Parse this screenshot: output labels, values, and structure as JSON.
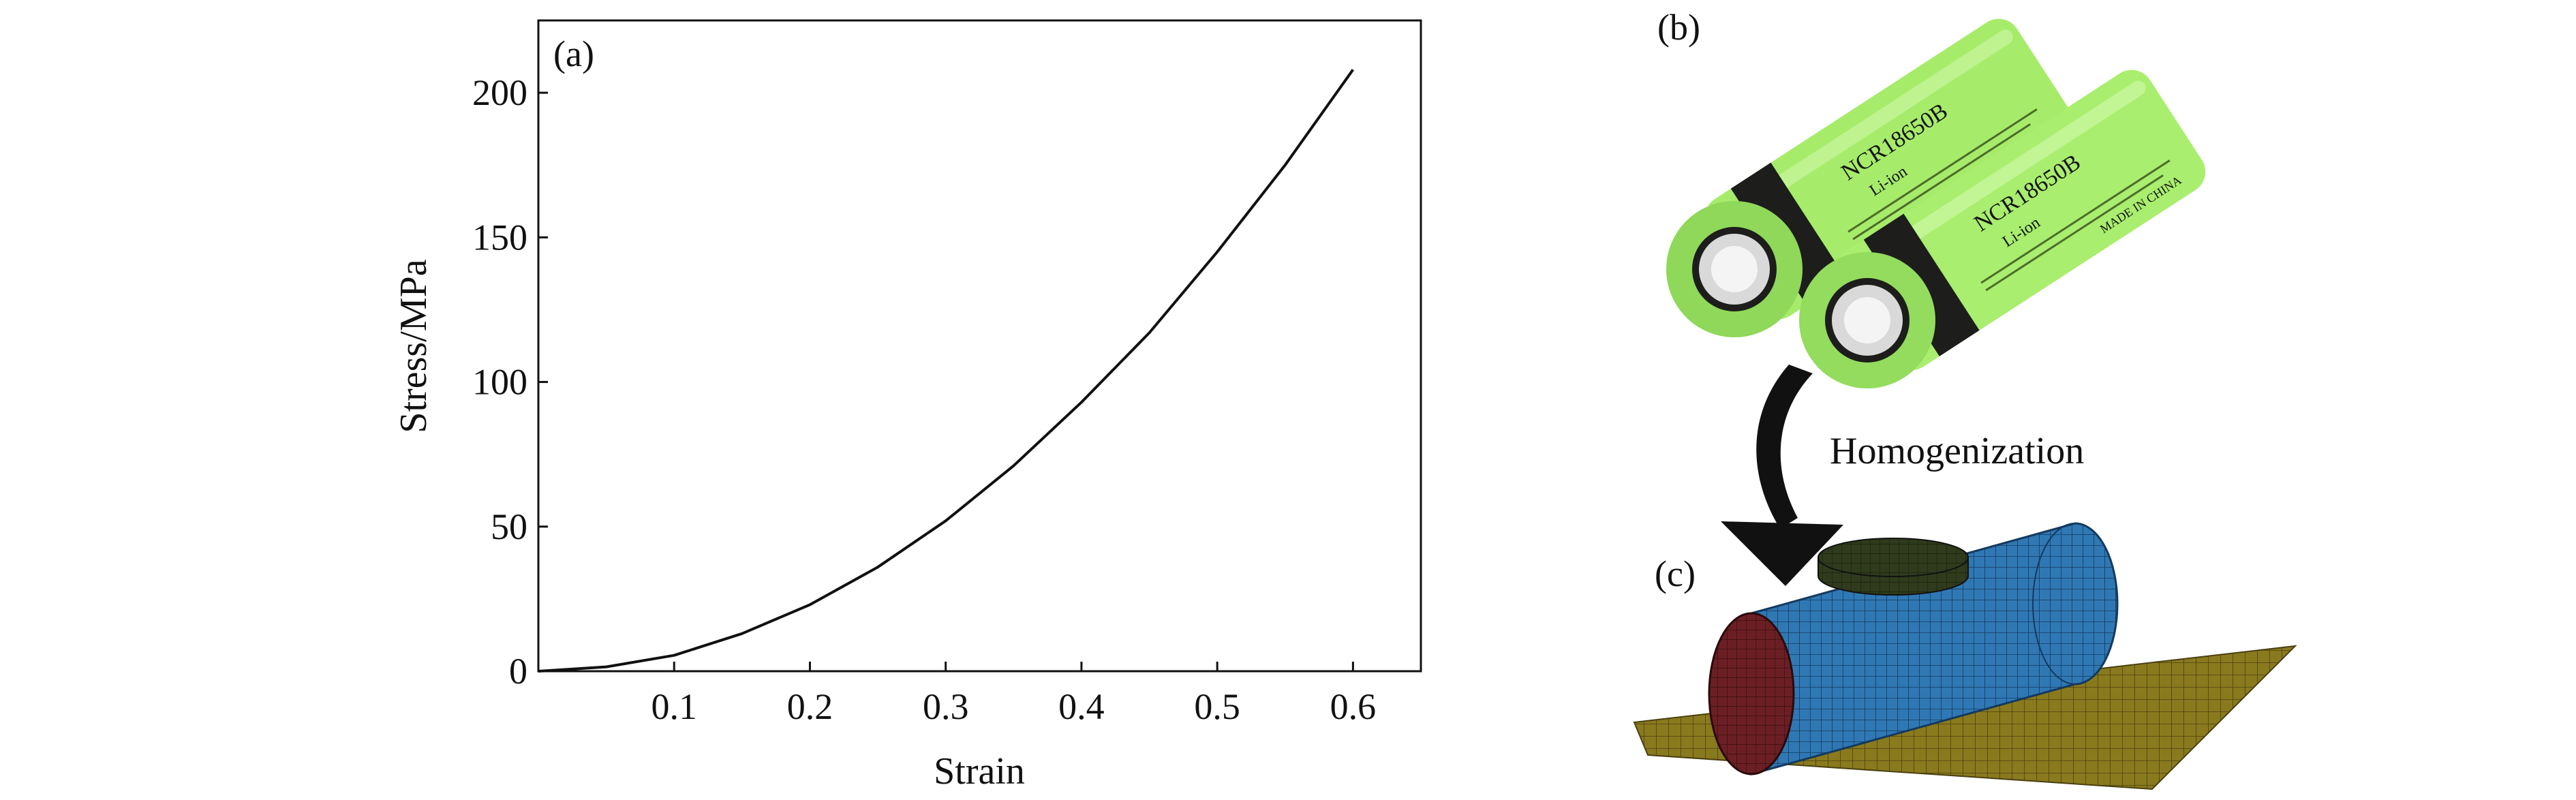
{
  "panel_labels": {
    "a": "(a)",
    "b": "(b)",
    "c": "(c)"
  },
  "arrow_label": "Homogenization",
  "battery": {
    "model": "NCR18650B",
    "sub_label": "Li-ion",
    "brand_text": "MADE IN CHINA",
    "body_color": "#a9ee6e",
    "cap_color": "#1d1d1b"
  },
  "fe_model": {
    "cylinder_color": "#2f78b4",
    "end_face_color": "#6b1f24",
    "plate_color": "#8a7a1e",
    "indenter_color": "#2f3b1c"
  },
  "chart_data": {
    "type": "line",
    "xlabel": "Strain",
    "ylabel": "Stress/MPa",
    "xlim": [
      0,
      0.65
    ],
    "ylim": [
      0,
      225
    ],
    "x_ticks": [
      0.1,
      0.2,
      0.3,
      0.4,
      0.5,
      0.6
    ],
    "x_tick_labels": [
      "0.1",
      "0.2",
      "0.3",
      "0.4",
      "0.5",
      "0.6"
    ],
    "y_ticks": [
      0,
      50,
      100,
      150,
      200
    ],
    "y_tick_labels": [
      "0",
      "50",
      "100",
      "150",
      "200"
    ],
    "grid": false,
    "series": [
      {
        "color": "#111111",
        "x": [
          0,
          0.05,
          0.1,
          0.15,
          0.2,
          0.25,
          0.3,
          0.35,
          0.4,
          0.45,
          0.5,
          0.55,
          0.6
        ],
        "y": [
          0,
          1.5,
          5.5,
          13,
          23,
          36,
          52,
          71,
          93,
          117,
          145,
          175,
          208
        ]
      }
    ]
  }
}
